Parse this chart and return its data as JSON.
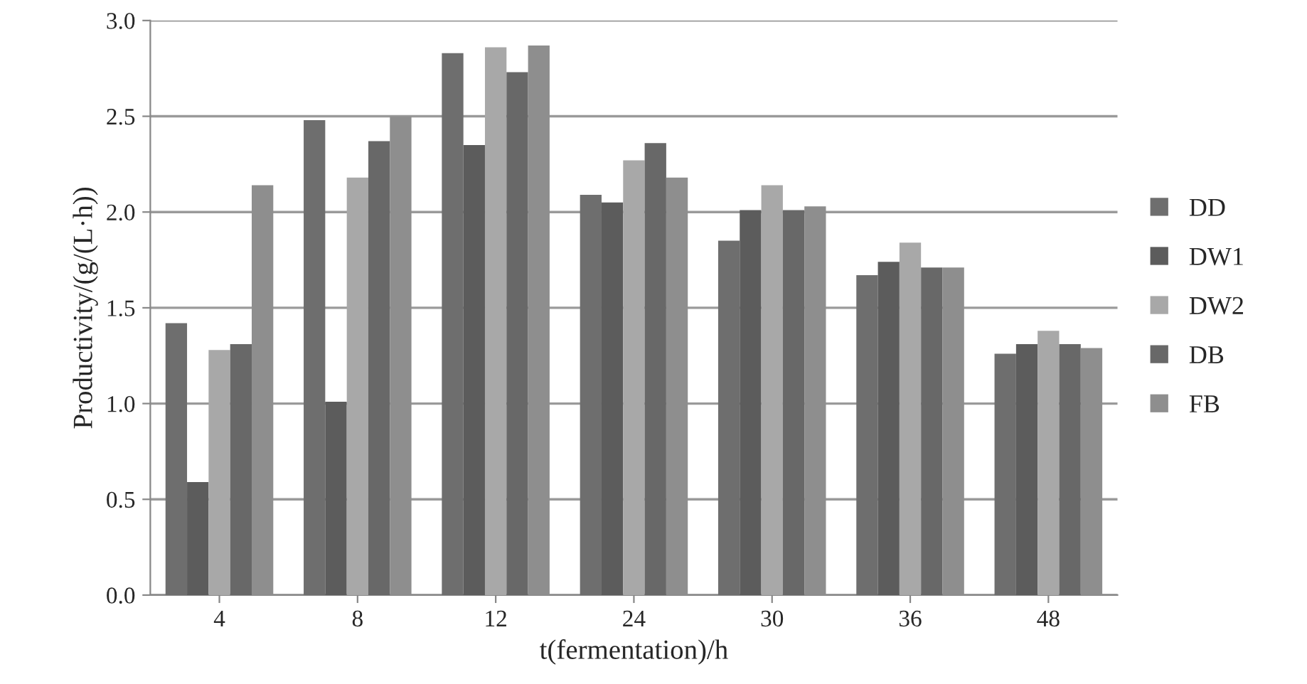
{
  "chart_data": {
    "type": "bar",
    "xlabel": "t(fermentation)/h",
    "ylabel": "Productivity/(g/(L·h))",
    "categories": [
      "4",
      "8",
      "12",
      "24",
      "30",
      "36",
      "48"
    ],
    "series": [
      {
        "name": "DD",
        "color": "#6e6e6e",
        "values": [
          1.42,
          2.48,
          2.83,
          2.09,
          1.85,
          1.67,
          1.26
        ]
      },
      {
        "name": "DW1",
        "color": "#5c5c5c",
        "values": [
          0.59,
          1.01,
          2.35,
          2.05,
          2.01,
          1.74,
          1.31
        ]
      },
      {
        "name": "DW2",
        "color": "#a8a8a8",
        "values": [
          1.28,
          2.18,
          2.86,
          2.27,
          2.14,
          1.84,
          1.38
        ]
      },
      {
        "name": "DB",
        "color": "#686868",
        "values": [
          1.31,
          2.37,
          2.73,
          2.36,
          2.01,
          1.71,
          1.31
        ]
      },
      {
        "name": "FB",
        "color": "#8e8e8e",
        "values": [
          2.14,
          2.5,
          2.87,
          2.18,
          2.03,
          1.71,
          1.29
        ]
      }
    ],
    "ylim": [
      0,
      3.0
    ],
    "yticks": [
      {
        "value": 0,
        "label": "0.0"
      },
      {
        "value": 0.5,
        "label": "0.5"
      },
      {
        "value": 1.0,
        "label": "1.0"
      },
      {
        "value": 1.5,
        "label": "1.5"
      },
      {
        "value": 2.0,
        "label": "2.0"
      },
      {
        "value": 2.5,
        "label": "2.5"
      },
      {
        "value": 3.0,
        "label": "3.0"
      }
    ],
    "grid": "y",
    "legend": "right"
  }
}
